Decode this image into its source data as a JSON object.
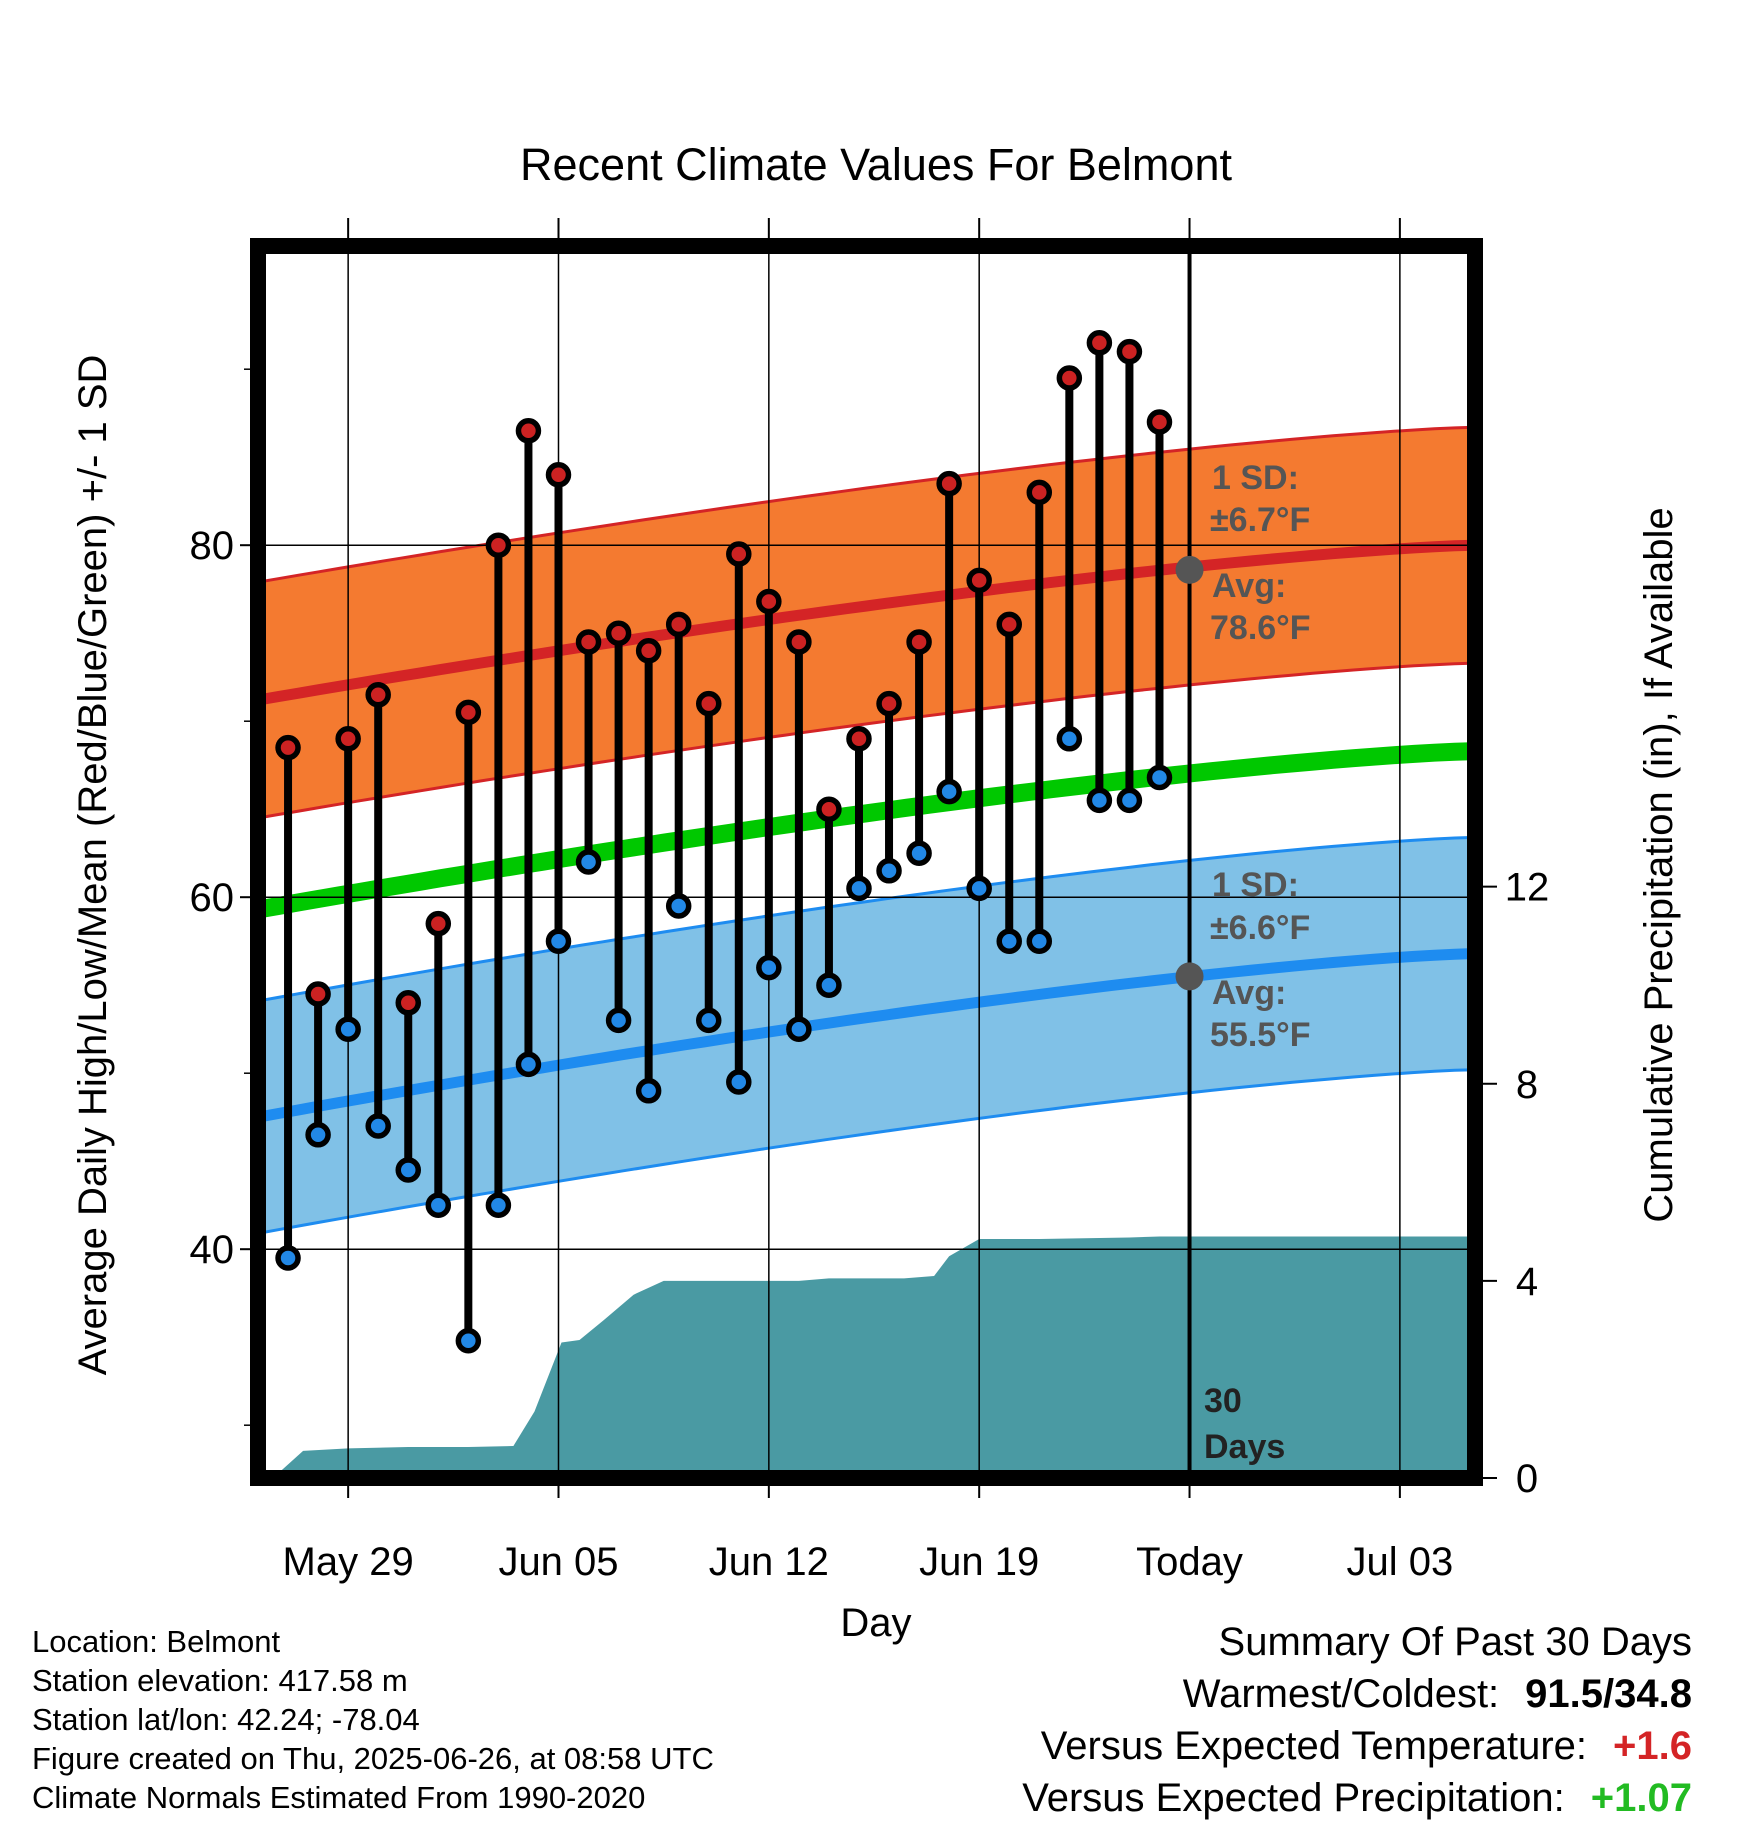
{
  "title": "Recent Climate Values For Belmont",
  "left_axis_label": "Average Daily High/Low/Mean (Red/Blue/Green) +/- 1 SD",
  "right_axis_label": "Cumulative Precipitation (in), If Available",
  "x_axis_label": "Day",
  "today_marker_label_line1": "30",
  "today_marker_label_line2": "Days",
  "high_band": {
    "sd_label": "1 SD:",
    "sd_value": "±6.7°F",
    "avg_label": "Avg:",
    "avg_value": "78.6°F"
  },
  "low_band": {
    "sd_label": "1 SD:",
    "sd_value": "±6.6°F",
    "avg_label": "Avg:",
    "avg_value": "55.5°F"
  },
  "footer": {
    "location": "Location: Belmont",
    "elevation": "Station elevation: 417.58 m",
    "latlon": "Station lat/lon: 42.24; -78.04",
    "created": "Figure created on Thu, 2025-06-26, at 08:58 UTC",
    "normals": "Climate Normals Estimated From 1990-2020"
  },
  "summary": {
    "heading": "Summary Of Past 30 Days",
    "warm_cold_label": "Warmest/Coldest:",
    "warm_cold_value": "91.5/34.8",
    "temp_label": "Versus Expected Temperature:",
    "temp_value": "+1.6",
    "precip_label": "Versus Expected Precipitation:",
    "precip_value": "+1.07"
  },
  "colors": {
    "high_band": "#f47a30",
    "high_line": "#d42426",
    "low_band": "#80c1e7",
    "low_line": "#1e8cf0",
    "mean_line": "#00c800",
    "precip": "#4a9aa3",
    "high_dot": "#cc2222",
    "low_dot": "#2288e6",
    "temp_delta": "#d42426",
    "precip_delta": "#22bb22"
  },
  "chart_data": {
    "type": "line",
    "x_axis": {
      "tick_labels": [
        "May 29",
        "Jun 05",
        "Jun 12",
        "Jun 19",
        "Today",
        "Jul 03"
      ],
      "tick_days_from_today": [
        -28,
        -21,
        -14,
        -7,
        0,
        7
      ],
      "range_days_from_today": [
        -31,
        9.5
      ]
    },
    "y_left": {
      "range": [
        27,
        97
      ],
      "major_ticks": [
        40,
        60,
        80
      ],
      "minor_ticks": [
        30,
        50,
        70,
        90
      ]
    },
    "y_right": {
      "range": [
        0,
        25
      ],
      "ticks": [
        0,
        4,
        8,
        12
      ]
    },
    "daily_highs": [
      68.5,
      54.5,
      69,
      71.5,
      54,
      58.5,
      70.5,
      80,
      86.5,
      84,
      74.5,
      75,
      74,
      75.5,
      71,
      79.5,
      76.8,
      74.5,
      65,
      69,
      71,
      74.5,
      83.5,
      78,
      75.5,
      83,
      89.5,
      91.5,
      91,
      87
    ],
    "daily_lows": [
      39.5,
      46.5,
      52.5,
      47,
      44.5,
      42.5,
      34.8,
      42.5,
      50.5,
      57.5,
      62,
      53,
      49,
      59.5,
      53,
      49.5,
      56,
      52.5,
      55,
      60.5,
      61.5,
      62.5,
      66,
      60.5,
      57.5,
      57.5,
      69,
      65.5,
      65.5,
      66.8
    ],
    "normal_high_endpoints": [
      71.2,
      80.0
    ],
    "normal_low_endpoints": [
      47.5,
      56.8
    ],
    "normal_mean_endpoints": [
      59.3,
      68.3
    ],
    "high_sd": 6.7,
    "low_sd": 6.6,
    "today_avg_high": 78.6,
    "today_avg_low": 55.5,
    "cumulative_precip_in": [
      [
        -30.5,
        0.0
      ],
      [
        -29.5,
        0.55
      ],
      [
        -28,
        0.6
      ],
      [
        -26,
        0.63
      ],
      [
        -24,
        0.63
      ],
      [
        -22.5,
        0.65
      ],
      [
        -21.8,
        1.35
      ],
      [
        -20.9,
        2.75
      ],
      [
        -20.3,
        2.8
      ],
      [
        -19.5,
        3.2
      ],
      [
        -18.5,
        3.72
      ],
      [
        -17.5,
        4.0
      ],
      [
        -15,
        4.0
      ],
      [
        -13,
        4.0
      ],
      [
        -12,
        4.05
      ],
      [
        -9.5,
        4.05
      ],
      [
        -8.5,
        4.1
      ],
      [
        -8,
        4.5
      ],
      [
        -7,
        4.85
      ],
      [
        -5,
        4.85
      ],
      [
        -2,
        4.88
      ],
      [
        -1,
        4.9
      ],
      [
        9.5,
        4.9
      ]
    ]
  }
}
